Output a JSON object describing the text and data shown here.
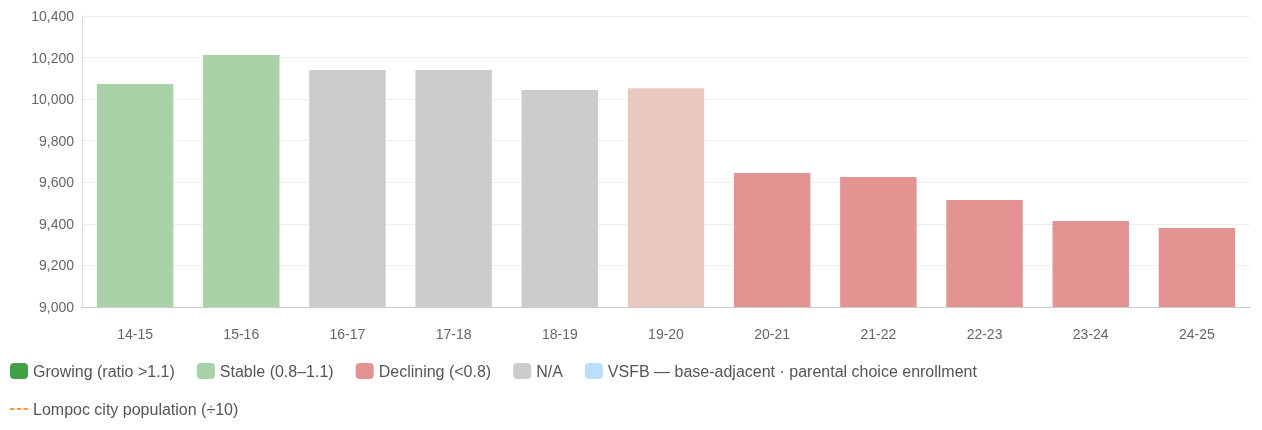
{
  "chart_data": {
    "type": "bar",
    "stacked": true,
    "categories": [
      "14-15",
      "15-16",
      "16-17",
      "17-18",
      "18-19",
      "19-20",
      "20-21",
      "21-22",
      "22-23",
      "23-24",
      "24-25"
    ],
    "series": [
      {
        "name": "Growing (ratio >1.1)",
        "color": "#43a047",
        "values": [
          null,
          null,
          null,
          null,
          null,
          null,
          null,
          null,
          null,
          null,
          null
        ]
      },
      {
        "name": "Stable (0.8–1.1)",
        "color": "#a9d2a9",
        "values": [
          10073,
          10212,
          null,
          null,
          null,
          null,
          null,
          null,
          null,
          null,
          null
        ]
      },
      {
        "name": "Declining (<0.8)",
        "color": "#e39391",
        "colors": [
          null,
          null,
          null,
          null,
          null,
          "#e9c9bf",
          "#e39391",
          "#e39391",
          "#e39391",
          "#e39391",
          "#e39391"
        ],
        "values": [
          null,
          null,
          null,
          null,
          null,
          10053,
          9645,
          9625,
          9515,
          9414,
          9380
        ]
      },
      {
        "name": "N/A",
        "color": "#cccccc",
        "values": [
          null,
          null,
          10140,
          10140,
          10044,
          null,
          null,
          null,
          null,
          null,
          null
        ]
      },
      {
        "name": "VSFB — base-adjacent · parental choice enrollment",
        "color": "#bbdefb",
        "values": [
          null,
          null,
          null,
          null,
          null,
          null,
          null,
          null,
          null,
          null,
          null
        ]
      },
      {
        "name": "Lompoc city population (÷10)",
        "type": "line",
        "line_style": "dashed",
        "color": "#f57c00",
        "values": [
          null,
          null,
          null,
          null,
          null,
          null,
          null,
          null,
          null,
          null,
          null
        ]
      }
    ],
    "ylim": [
      9000,
      10400
    ],
    "yticks": [
      {
        "value": 9000,
        "label": "9,000"
      },
      {
        "value": 9200,
        "label": "9,200"
      },
      {
        "value": 9400,
        "label": "9,400"
      },
      {
        "value": 9600,
        "label": "9,600"
      },
      {
        "value": 9800,
        "label": "9,800"
      },
      {
        "value": 10000,
        "label": "10,000"
      },
      {
        "value": 10200,
        "label": "10,200"
      },
      {
        "value": 10400,
        "label": "10,400"
      }
    ],
    "grid": "y",
    "legend": "bottom"
  }
}
